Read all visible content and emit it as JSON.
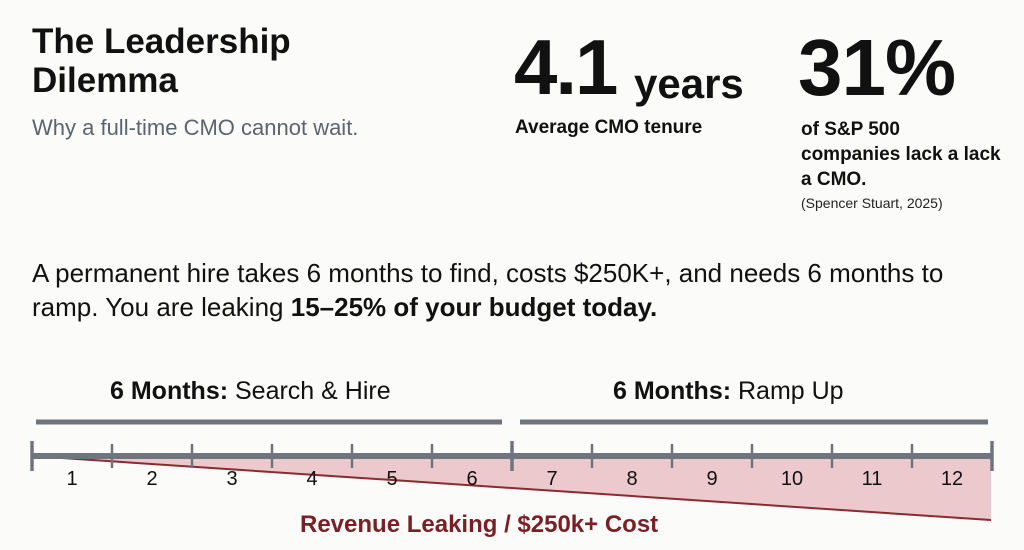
{
  "header": {
    "title": "The Leadership Dilemma",
    "subtitle": "Why a full-time CMO cannot wait."
  },
  "stats": {
    "tenure": {
      "value": "4.1",
      "unit": "years",
      "label": "Average CMO tenure"
    },
    "lack_cmo": {
      "value": "31%",
      "label": "of S&P 500 companies lack a lack a CMO.",
      "source": "(Spencer Stuart, 2025)"
    }
  },
  "statement": {
    "text": "A permanent hire takes 6 months to find, costs $250K+, and needs 6 months to ramp. You are leaking ",
    "emphasis": "15–25% of your budget today."
  },
  "timeline": {
    "phases": [
      {
        "bold": "6 Months:",
        "label": " Search & Hire"
      },
      {
        "bold": "6 Months:",
        "label": " Ramp Up"
      }
    ],
    "months": [
      "1",
      "2",
      "3",
      "4",
      "5",
      "6",
      "7",
      "8",
      "9",
      "10",
      "11",
      "12"
    ],
    "leak_label": "Revenue Leaking / $250k+ Cost"
  },
  "colors": {
    "leak_fill": "#ebc9cc",
    "leak_line": "#8c2a31",
    "leak_text": "#7a1f25",
    "track": "#6e757c",
    "subtitle": "#5a6570"
  }
}
